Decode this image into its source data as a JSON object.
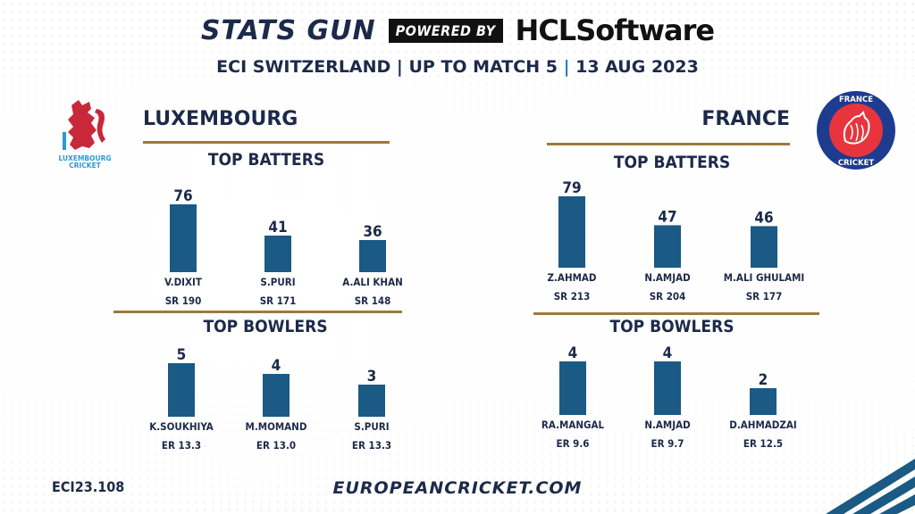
{
  "header": {
    "brand": "STATS GUN",
    "powered_by": "POWERED BY",
    "sponsor": "HCLSoftware",
    "subtitle_a": "ECI SWITZERLAND | UP TO MATCH 5 ",
    "subtitle_b": "| ",
    "subtitle_c": "13 AUG 2023"
  },
  "colors": {
    "bar": "#1a5a85",
    "rule": "#9c7a3c",
    "text": "#1c2a4a",
    "accent": "#2a7bbf",
    "luxembourg_red": "#c8283a",
    "france_blue": "#1d3c8f"
  },
  "luxembourg": {
    "team": "LUXEMBOURG",
    "logo_text_1": "LUXEMBOURG",
    "logo_text_2": "CRICKET",
    "batters_title": "TOP BATTERS",
    "bowlers_title": "TOP BOWLERS"
  },
  "france": {
    "team": "FRANCE",
    "logo_text_1": "FRANCE",
    "logo_text_2": "CRICKET",
    "batters_title": "TOP BATTERS",
    "bowlers_title": "TOP BOWLERS"
  },
  "chart_data": [
    {
      "type": "bar",
      "title": "TOP BATTERS",
      "team": "LUXEMBOURG",
      "categories": [
        "V.DIXIT",
        "S.PURI",
        "A.ALI KHAN"
      ],
      "values": [
        76,
        41,
        36
      ],
      "sublabels": [
        "SR 190",
        "SR 171",
        "SR 148"
      ]
    },
    {
      "type": "bar",
      "title": "TOP BOWLERS",
      "team": "LUXEMBOURG",
      "categories": [
        "K.SOUKHIYA",
        "M.MOMAND",
        "S.PURI"
      ],
      "values": [
        5,
        4,
        3
      ],
      "sublabels": [
        "ER 13.3",
        "ER 13.0",
        "ER 13.3"
      ]
    },
    {
      "type": "bar",
      "title": "TOP BATTERS",
      "team": "FRANCE",
      "categories": [
        "Z.AHMAD",
        "N.AMJAD",
        "M.ALI GHULAMI"
      ],
      "values": [
        79,
        47,
        46
      ],
      "sublabels": [
        "SR 213",
        "SR 204",
        "SR 177"
      ]
    },
    {
      "type": "bar",
      "title": "TOP BOWLERS",
      "team": "FRANCE",
      "categories": [
        "RA.MANGAL",
        "N.AMJAD",
        "D.AHMADZAI"
      ],
      "values": [
        4,
        4,
        2
      ],
      "sublabels": [
        "ER 9.6",
        "ER 9.7",
        "ER 12.5"
      ]
    }
  ],
  "footer": {
    "code": "ECI23.108",
    "website": "EUROPEANCRICKET.COM"
  }
}
